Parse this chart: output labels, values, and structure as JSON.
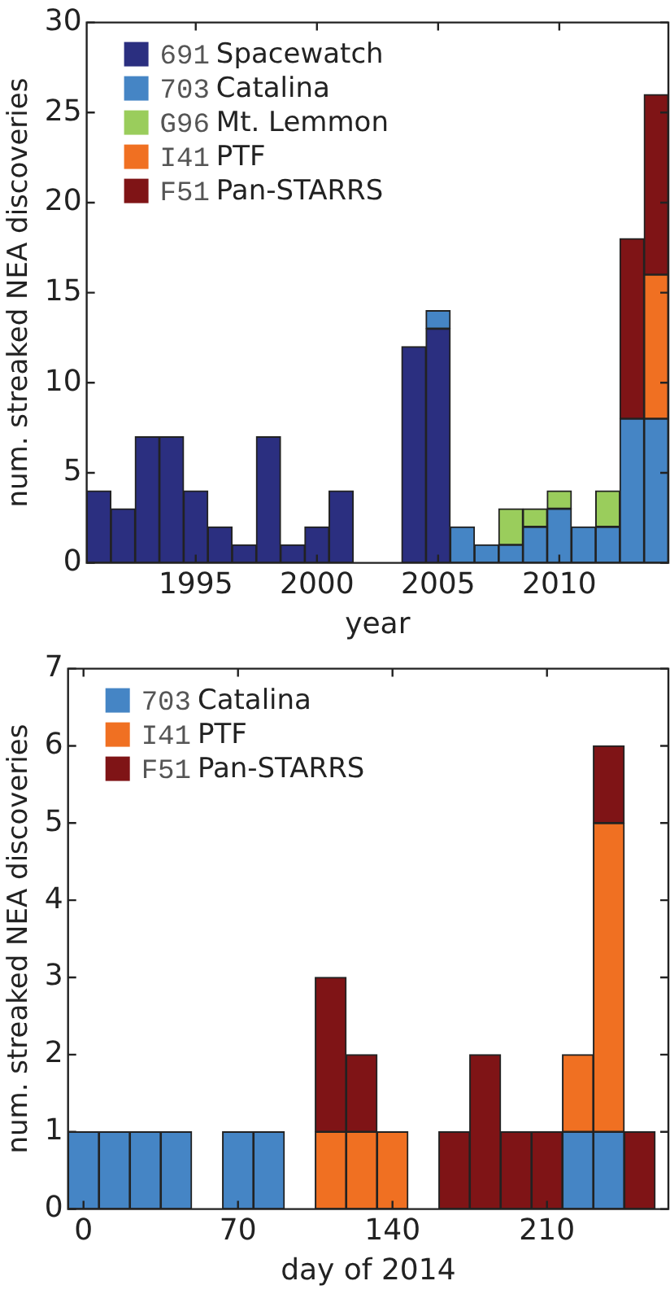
{
  "chart_data": [
    {
      "type": "bar",
      "stacked": true,
      "xlabel": "year",
      "ylabel": "num. streaked NEA discoveries",
      "x": [
        1991,
        1992,
        1993,
        1994,
        1995,
        1996,
        1997,
        1998,
        1999,
        2000,
        2001,
        2002,
        2003,
        2004,
        2005,
        2006,
        2007,
        2008,
        2009,
        2010,
        2011,
        2012,
        2013,
        2014
      ],
      "series": [
        {
          "name": "691 Spacewatch",
          "color": "#2b2f80",
          "values": [
            4,
            3,
            7,
            7,
            4,
            2,
            1,
            7,
            1,
            2,
            4,
            null,
            null,
            12,
            13,
            null,
            null,
            null,
            null,
            null,
            null,
            null,
            null,
            null
          ]
        },
        {
          "name": "703 Catalina",
          "color": "#4585c5",
          "values": [
            null,
            null,
            null,
            null,
            null,
            null,
            null,
            null,
            null,
            null,
            null,
            null,
            null,
            null,
            1,
            2,
            1,
            1,
            2,
            3,
            2,
            2,
            8,
            8
          ]
        },
        {
          "name": "G96 Mt. Lemmon",
          "color": "#9acd5c",
          "values": [
            null,
            null,
            null,
            null,
            null,
            null,
            null,
            null,
            null,
            null,
            null,
            null,
            null,
            null,
            null,
            null,
            null,
            2,
            1,
            1,
            null,
            2,
            null,
            null
          ]
        },
        {
          "name": "I41 PTF",
          "color": "#f07022",
          "values": [
            null,
            null,
            null,
            null,
            null,
            null,
            null,
            null,
            null,
            null,
            null,
            null,
            null,
            null,
            null,
            null,
            null,
            null,
            null,
            null,
            null,
            null,
            null,
            8
          ]
        },
        {
          "name": "F51 Pan-STARRS",
          "color": "#7f1416",
          "values": [
            null,
            null,
            null,
            null,
            null,
            null,
            null,
            null,
            null,
            null,
            null,
            null,
            null,
            null,
            null,
            null,
            null,
            null,
            null,
            null,
            null,
            null,
            10,
            10
          ]
        }
      ],
      "xlim": [
        1990.5,
        2014.5
      ],
      "xticks": [
        1995,
        2000,
        2005,
        2010
      ],
      "ylim": [
        0,
        30
      ],
      "yticks": [
        0,
        5,
        10,
        15,
        20,
        25,
        30
      ],
      "legend": "top left",
      "grid": false
    },
    {
      "type": "bar",
      "stacked": true,
      "xlabel": "day of 2014",
      "ylabel": "num. streaked NEA discoveries",
      "x": [
        0,
        14,
        28,
        42,
        70,
        84,
        112,
        126,
        140,
        168,
        182,
        196,
        210,
        224,
        238,
        252
      ],
      "series": [
        {
          "name": "703 Catalina",
          "color": "#4585c5",
          "values": [
            1,
            1,
            1,
            1,
            1,
            1,
            null,
            null,
            null,
            null,
            null,
            null,
            null,
            1,
            1,
            null
          ]
        },
        {
          "name": "I41 PTF",
          "color": "#f07022",
          "values": [
            null,
            null,
            null,
            null,
            null,
            null,
            1,
            1,
            1,
            null,
            null,
            null,
            null,
            1,
            4,
            null
          ]
        },
        {
          "name": "F51 Pan-STARRS",
          "color": "#7f1416",
          "values": [
            null,
            null,
            null,
            null,
            null,
            null,
            2,
            1,
            null,
            1,
            2,
            1,
            1,
            null,
            1,
            1
          ]
        }
      ],
      "xlim": [
        -7,
        265
      ],
      "xticks": [
        0,
        70,
        140,
        210
      ],
      "ylim": [
        0,
        7
      ],
      "yticks": [
        0,
        1,
        2,
        3,
        4,
        5,
        6,
        7
      ],
      "legend": "top left",
      "grid": false
    }
  ]
}
